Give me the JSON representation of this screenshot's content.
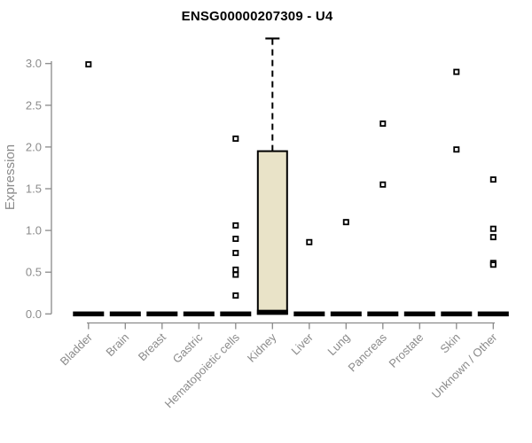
{
  "chart_data": {
    "type": "box",
    "title": "ENSG00000207309 - U4",
    "ylabel": "Expression",
    "xlabel": "",
    "ylim": [
      0,
      3.3
    ],
    "yticks": [
      0.0,
      0.5,
      1.0,
      1.5,
      2.0,
      2.5,
      3.0
    ],
    "grid": false,
    "legend": "none",
    "categories": [
      "Bladder",
      "Brain",
      "Breast",
      "Gastric",
      "Hematopoietic cells",
      "Kidney",
      "Liver",
      "Lung",
      "Pancreas",
      "Prostate",
      "Skin",
      "Unknown / Other"
    ],
    "series": [
      {
        "category": "Bladder",
        "q1": 0,
        "median": 0,
        "q3": 0,
        "whisker_low": 0,
        "whisker_high": 0,
        "outliers": [
          2.99
        ]
      },
      {
        "category": "Brain",
        "q1": 0,
        "median": 0,
        "q3": 0,
        "whisker_low": 0,
        "whisker_high": 0,
        "outliers": []
      },
      {
        "category": "Breast",
        "q1": 0,
        "median": 0,
        "q3": 0,
        "whisker_low": 0,
        "whisker_high": 0,
        "outliers": []
      },
      {
        "category": "Gastric",
        "q1": 0,
        "median": 0,
        "q3": 0,
        "whisker_low": 0,
        "whisker_high": 0,
        "outliers": []
      },
      {
        "category": "Hematopoietic cells",
        "q1": 0,
        "median": 0,
        "q3": 0,
        "whisker_low": 0,
        "whisker_high": 0,
        "outliers": [
          2.1,
          1.06,
          0.9,
          0.73,
          0.53,
          0.47,
          0.22
        ]
      },
      {
        "category": "Kidney",
        "q1": 0,
        "median": 0.02,
        "q3": 1.95,
        "whisker_low": 0,
        "whisker_high": 3.3,
        "outliers": []
      },
      {
        "category": "Liver",
        "q1": 0,
        "median": 0,
        "q3": 0,
        "whisker_low": 0,
        "whisker_high": 0,
        "outliers": [
          0.86
        ]
      },
      {
        "category": "Lung",
        "q1": 0,
        "median": 0,
        "q3": 0,
        "whisker_low": 0,
        "whisker_high": 0,
        "outliers": [
          1.1
        ]
      },
      {
        "category": "Pancreas",
        "q1": 0,
        "median": 0,
        "q3": 0,
        "whisker_low": 0,
        "whisker_high": 0,
        "outliers": [
          2.28,
          1.55
        ]
      },
      {
        "category": "Prostate",
        "q1": 0,
        "median": 0,
        "q3": 0,
        "whisker_low": 0,
        "whisker_high": 0,
        "outliers": []
      },
      {
        "category": "Skin",
        "q1": 0,
        "median": 0,
        "q3": 0,
        "whisker_low": 0,
        "whisker_high": 0,
        "outliers": [
          2.9,
          1.97
        ]
      },
      {
        "category": "Unknown / Other",
        "q1": 0,
        "median": 0,
        "q3": 0,
        "whisker_low": 0,
        "whisker_high": 0,
        "outliers": [
          1.61,
          1.02,
          0.92,
          0.61,
          0.59
        ]
      }
    ],
    "colors": {
      "box_fill": "#e9e3c8",
      "box_border": "#000000",
      "median": "#000000",
      "whisker": "#000000",
      "outlier": "#000000",
      "axis_line": "#8a8a8a",
      "tick_label": "#8b8b8b",
      "title": "#000000",
      "background": "#ffffff"
    }
  }
}
